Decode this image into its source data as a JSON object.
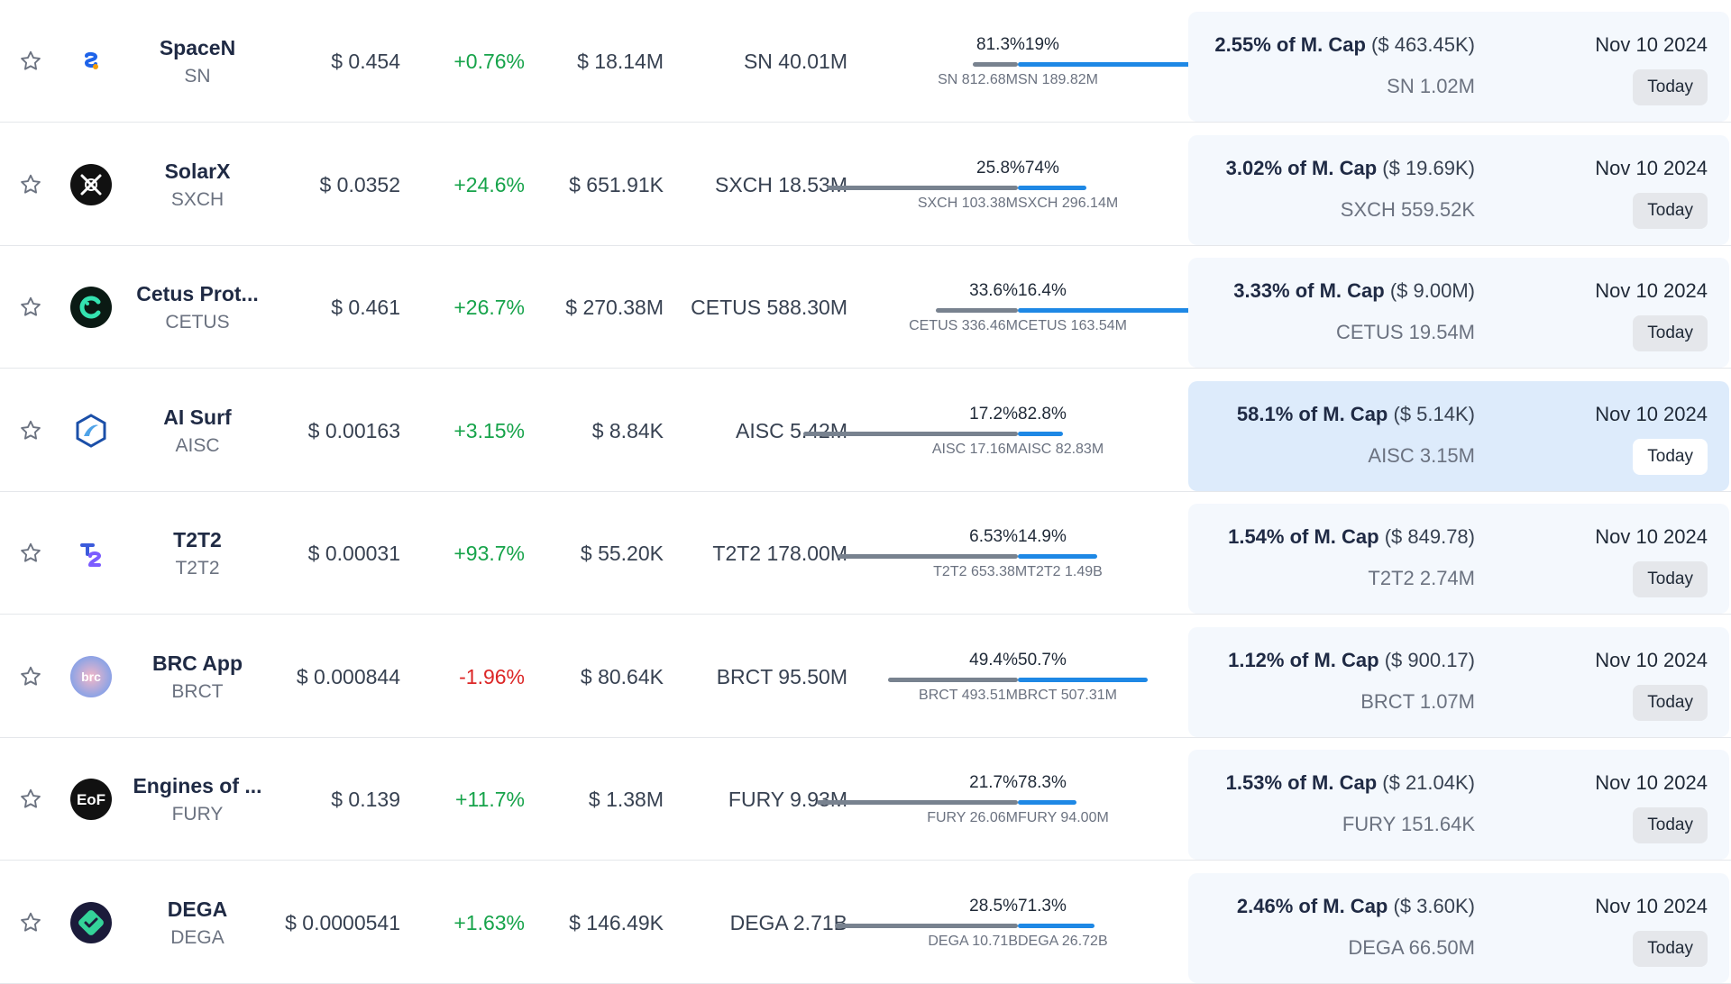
{
  "rows": [
    {
      "name": "SpaceN",
      "symbol": "SN",
      "price": "$ 0.454",
      "change": "+0.76%",
      "dir": "pos",
      "volume": "$ 18.14M",
      "supply": "SN 40.01M",
      "left_pct": "81.3%",
      "right_pct": "19%",
      "left_fraction": 0.81,
      "left_amount": "SN 812.68M",
      "right_amount": "SN 189.82M",
      "unlock_pct": "2.55% of M. Cap",
      "unlock_usd": "($ 463.45K)",
      "unlock_amount": "SN 1.02M",
      "date": "Nov 10 2024",
      "today": "Today",
      "highlight": false,
      "logo": {
        "icon": "spacen-logo-icon",
        "bg": "#ffffff",
        "fg": "#1e63e9"
      }
    },
    {
      "name": "SolarX",
      "symbol": "SXCH",
      "price": "$ 0.0352",
      "change": "+24.6%",
      "dir": "pos",
      "volume": "$ 651.91K",
      "supply": "SXCH 18.53M",
      "left_pct": "25.8%",
      "right_pct": "74%",
      "left_fraction": 0.26,
      "left_amount": "SXCH 103.38M",
      "right_amount": "SXCH 296.14M",
      "unlock_pct": "3.02% of M. Cap",
      "unlock_usd": "($ 19.69K)",
      "unlock_amount": "SXCH 559.52K",
      "date": "Nov 10 2024",
      "today": "Today",
      "highlight": false,
      "logo": {
        "icon": "solarx-logo-icon",
        "bg": "#111111",
        "fg": "#ffffff"
      }
    },
    {
      "name": "Cetus Prot...",
      "symbol": "CETUS",
      "price": "$ 0.461",
      "change": "+26.7%",
      "dir": "pos",
      "volume": "$ 270.38M",
      "supply": "CETUS 588.30M",
      "left_pct": "33.6%",
      "right_pct": "16.4%",
      "left_fraction": 0.67,
      "left_amount": "CETUS 336.46M",
      "right_amount": "CETUS 163.54M",
      "unlock_pct": "3.33% of M. Cap",
      "unlock_usd": "($ 9.00M)",
      "unlock_amount": "CETUS 19.54M",
      "date": "Nov 10 2024",
      "today": "Today",
      "highlight": false,
      "logo": {
        "icon": "cetus-logo-icon",
        "bg": "#0b1a14",
        "fg": "#34e3b0"
      }
    },
    {
      "name": "AI Surf",
      "symbol": "AISC",
      "price": "$ 0.00163",
      "change": "+3.15%",
      "dir": "pos",
      "volume": "$ 8.84K",
      "supply": "AISC 5.42M",
      "left_pct": "17.2%",
      "right_pct": "82.8%",
      "left_fraction": 0.17,
      "left_amount": "AISC 17.16M",
      "right_amount": "AISC 82.83M",
      "unlock_pct": "58.1% of M. Cap",
      "unlock_usd": "($ 5.14K)",
      "unlock_amount": "AISC 3.15M",
      "date": "Nov 10 2024",
      "today": "Today",
      "highlight": true,
      "logo": {
        "icon": "aisurf-logo-icon",
        "bg": "#ffffff",
        "fg": "#1b4fa8"
      }
    },
    {
      "name": "T2T2",
      "symbol": "T2T2",
      "price": "$ 0.00031",
      "change": "+93.7%",
      "dir": "pos",
      "volume": "$ 55.20K",
      "supply": "T2T2 178.00M",
      "left_pct": "6.53%",
      "right_pct": "14.9%",
      "left_fraction": 0.3,
      "left_amount": "T2T2 653.38M",
      "right_amount": "T2T2 1.49B",
      "unlock_pct": "1.54% of M. Cap",
      "unlock_usd": "($ 849.78)",
      "unlock_amount": "T2T2 2.74M",
      "date": "Nov 10 2024",
      "today": "Today",
      "highlight": false,
      "logo": {
        "icon": "t2t2-logo-icon",
        "bg": "#ffffff",
        "fg": "#3b5bdb"
      }
    },
    {
      "name": "BRC App",
      "symbol": "BRCT",
      "price": "$ 0.000844",
      "change": "-1.96%",
      "dir": "neg",
      "volume": "$ 80.64K",
      "supply": "BRCT 95.50M",
      "left_pct": "49.4%",
      "right_pct": "50.7%",
      "left_fraction": 0.49,
      "left_amount": "BRCT 493.51M",
      "right_amount": "BRCT 507.31M",
      "unlock_pct": "1.12% of M. Cap",
      "unlock_usd": "($ 900.17)",
      "unlock_amount": "BRCT 1.07M",
      "date": "Nov 10 2024",
      "today": "Today",
      "highlight": false,
      "logo": {
        "icon": "brc-logo-icon",
        "bg": "#c9a6e6",
        "fg": "#ffffff"
      }
    },
    {
      "name": "Engines of ...",
      "symbol": "FURY",
      "price": "$ 0.139",
      "change": "+11.7%",
      "dir": "pos",
      "volume": "$ 1.38M",
      "supply": "FURY 9.93M",
      "left_pct": "21.7%",
      "right_pct": "78.3%",
      "left_fraction": 0.22,
      "left_amount": "FURY 26.06M",
      "right_amount": "FURY 94.00M",
      "unlock_pct": "1.53% of M. Cap",
      "unlock_usd": "($ 21.04K)",
      "unlock_amount": "FURY 151.64K",
      "date": "Nov 10 2024",
      "today": "Today",
      "highlight": false,
      "logo": {
        "icon": "fury-logo-icon",
        "bg": "#111111",
        "fg": "#ffffff"
      }
    },
    {
      "name": "DEGA",
      "symbol": "DEGA",
      "price": "$ 0.0000541",
      "change": "+1.63%",
      "dir": "pos",
      "volume": "$ 146.49K",
      "supply": "DEGA 2.71B",
      "left_pct": "28.5%",
      "right_pct": "71.3%",
      "left_fraction": 0.29,
      "left_amount": "DEGA 10.71B",
      "right_amount": "DEGA 26.72B",
      "unlock_pct": "2.46% of M. Cap",
      "unlock_usd": "($ 3.60K)",
      "unlock_amount": "DEGA 66.50M",
      "date": "Nov 10 2024",
      "today": "Today",
      "highlight": false,
      "logo": {
        "icon": "dega-logo-icon",
        "bg": "#1b1b3a",
        "fg": "#34d399"
      }
    }
  ]
}
